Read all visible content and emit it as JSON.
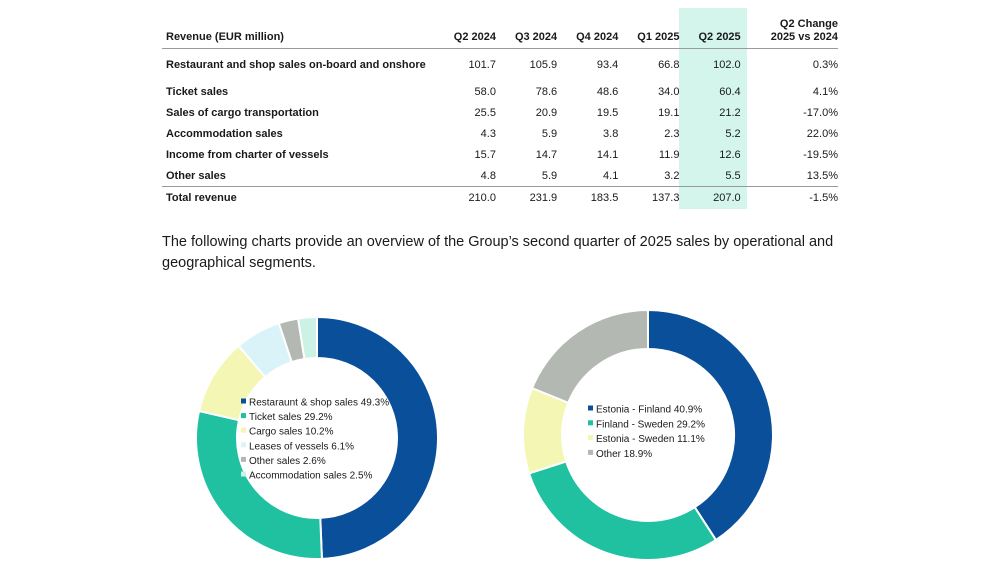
{
  "table": {
    "header": {
      "label": "Revenue (EUR million)",
      "columns": [
        "Q2 2024",
        "Q3 2024",
        "Q4 2024",
        "Q1 2025",
        "Q2 2025"
      ],
      "change_line1": "Q2 Change",
      "change_line2": "2025 vs 2024"
    },
    "highlight_color": "#d3f5ec",
    "rows": [
      {
        "label": "Restaurant and shop sales on-board and onshore",
        "values": [
          "101.7",
          "105.9",
          "93.4",
          "66.8",
          "102.0"
        ],
        "change": "0.3%"
      },
      {
        "label": "Ticket sales",
        "values": [
          "58.0",
          "78.6",
          "48.6",
          "34.0",
          "60.4"
        ],
        "change": "4.1%"
      },
      {
        "label": "Sales of cargo transportation",
        "values": [
          "25.5",
          "20.9",
          "19.5",
          "19.1",
          "21.2"
        ],
        "change": "-17.0%"
      },
      {
        "label": "Accommodation sales",
        "values": [
          "4.3",
          "5.9",
          "3.8",
          "2.3",
          "5.2"
        ],
        "change": "22.0%"
      },
      {
        "label": "Income from charter of vessels",
        "values": [
          "15.7",
          "14.7",
          "14.1",
          "11.9",
          "12.6"
        ],
        "change": "-19.5%"
      },
      {
        "label": "Other sales",
        "values": [
          "4.8",
          "5.9",
          "4.1",
          "3.2",
          "5.5"
        ],
        "change": "13.5%"
      },
      {
        "label": "Total revenue",
        "values": [
          "210.0",
          "231.9",
          "183.5",
          "137.3",
          "207.0"
        ],
        "change": "-1.5%"
      }
    ]
  },
  "intro_text": "The following charts provide an overview of the Group’s second quarter of 2025 sales by operational and geographical segments.",
  "chart_data": [
    {
      "type": "pie",
      "title": "",
      "legend_placement": "center",
      "slices": [
        {
          "label": "Restaraunt & shop sales 49.3%",
          "value": 49.3,
          "color": "#0a4f9a"
        },
        {
          "label": "Ticket sales 29.2%",
          "value": 29.2,
          "color": "#1fc1a0"
        },
        {
          "label": "Cargo sales 10.2%",
          "value": 10.2,
          "color": "#f4f6b4"
        },
        {
          "label": "Leases of vessels 6.1%",
          "value": 6.1,
          "color": "#d9f3f8"
        },
        {
          "label": "Other sales 2.6%",
          "value": 2.6,
          "color": "#b3b8b3"
        },
        {
          "label": "Accommodation sales 2.5%",
          "value": 2.5,
          "color": "#ccf2e6"
        }
      ]
    },
    {
      "type": "pie",
      "title": "",
      "legend_placement": "center",
      "slices": [
        {
          "label": "Estonia - Finland 40.9%",
          "value": 40.9,
          "color": "#0a4f9a"
        },
        {
          "label": "Finland - Sweden 29.2%",
          "value": 29.2,
          "color": "#1fc1a0"
        },
        {
          "label": "Estonia - Sweden 11.1%",
          "value": 11.1,
          "color": "#f4f6b4"
        },
        {
          "label": "Other 18.9%",
          "value": 18.9,
          "color": "#b3b8b3"
        }
      ]
    }
  ]
}
